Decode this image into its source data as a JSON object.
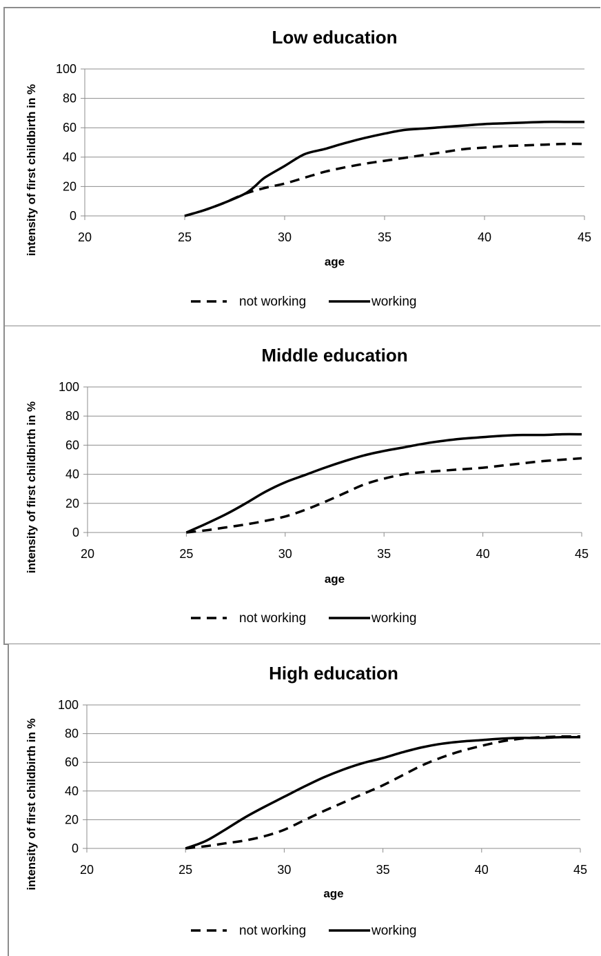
{
  "chart_data": [
    {
      "type": "line",
      "title": "Low education",
      "xlabel": "age",
      "ylabel": "intensity of first childbirth in %",
      "xlim": [
        20,
        45
      ],
      "ylim": [
        0,
        100
      ],
      "x_ticks": [
        "20",
        "25",
        "30",
        "35",
        "40",
        "45"
      ],
      "y_ticks": [
        "0",
        "20",
        "40",
        "60",
        "80",
        "100"
      ],
      "grid": true,
      "legend_position": "bottom",
      "series": [
        {
          "name": "not working",
          "style": "dashed",
          "x": [
            25,
            26,
            27,
            28,
            29,
            30,
            31,
            32,
            33,
            34,
            35,
            36,
            37,
            38,
            39,
            40,
            41,
            42,
            43,
            44,
            45
          ],
          "values": [
            0,
            4,
            9,
            15,
            19,
            22,
            26,
            30,
            33,
            35.5,
            37.5,
            39.5,
            41.5,
            43.5,
            45.5,
            46.5,
            47.5,
            48,
            48.5,
            49,
            49
          ]
        },
        {
          "name": "working",
          "style": "solid",
          "x": [
            25,
            26,
            27,
            28,
            28.5,
            29,
            30,
            31,
            32,
            33,
            34,
            35,
            36,
            37,
            38,
            39,
            40,
            41,
            42,
            43,
            44,
            45
          ],
          "values": [
            0,
            4,
            9,
            15,
            20,
            26,
            34,
            42,
            45.5,
            49.5,
            53,
            56,
            58.5,
            59.5,
            60.5,
            61.5,
            62.5,
            63,
            63.5,
            64,
            64,
            64
          ]
        }
      ]
    },
    {
      "type": "line",
      "title": "Middle education",
      "xlabel": "age",
      "ylabel": "intensity of first childbirth in %",
      "xlim": [
        20,
        45
      ],
      "ylim": [
        0,
        100
      ],
      "x_ticks": [
        "20",
        "25",
        "30",
        "35",
        "40",
        "45"
      ],
      "y_ticks": [
        "0",
        "20",
        "40",
        "60",
        "80",
        "100"
      ],
      "grid": true,
      "legend_position": "bottom",
      "series": [
        {
          "name": "not working",
          "style": "dashed",
          "x": [
            25,
            26,
            27,
            28,
            29,
            30,
            31,
            32,
            33,
            34,
            35,
            36,
            37,
            38,
            39,
            40,
            41,
            42,
            43,
            44,
            45
          ],
          "values": [
            0,
            1.5,
            3.5,
            5.5,
            8,
            11,
            15.5,
            21,
            27,
            33,
            37,
            40,
            41.5,
            42.5,
            43.5,
            44.5,
            46,
            47.5,
            49,
            50,
            51
          ]
        },
        {
          "name": "working",
          "style": "solid",
          "x": [
            25,
            26,
            27,
            28,
            29,
            30,
            31,
            32,
            33,
            34,
            35,
            36,
            37,
            38,
            39,
            40,
            41,
            42,
            43,
            44,
            45
          ],
          "values": [
            0,
            6,
            12.5,
            20,
            28,
            34.5,
            39.5,
            44.5,
            49,
            53,
            56,
            58.5,
            61,
            63,
            64.5,
            65.5,
            66.5,
            67,
            67,
            67.5,
            67.5
          ]
        }
      ]
    },
    {
      "type": "line",
      "title": "High education",
      "xlabel": "age",
      "ylabel": "intensity of first childbirth in %",
      "xlim": [
        20,
        45
      ],
      "ylim": [
        0,
        100
      ],
      "x_ticks": [
        "20",
        "25",
        "30",
        "35",
        "40",
        "45"
      ],
      "y_ticks": [
        "0",
        "20",
        "40",
        "60",
        "80",
        "100"
      ],
      "grid": true,
      "legend_position": "bottom",
      "series": [
        {
          "name": "not working",
          "style": "dashed",
          "x": [
            25,
            26,
            27,
            28,
            29,
            30,
            31,
            32,
            33,
            34,
            35,
            36,
            37,
            38,
            39,
            40,
            41,
            42,
            43,
            44,
            45
          ],
          "values": [
            0,
            1.5,
            3.5,
            5.5,
            8.5,
            13,
            19.5,
            26,
            32,
            38,
            44,
            51,
            58,
            63.5,
            68,
            71.5,
            74.5,
            76.5,
            77.5,
            78,
            78
          ]
        },
        {
          "name": "working",
          "style": "solid",
          "x": [
            25,
            26,
            27,
            28,
            29,
            30,
            31,
            32,
            33,
            34,
            35,
            36,
            37,
            38,
            39,
            40,
            41,
            42,
            43,
            44,
            45
          ],
          "values": [
            0,
            5,
            13,
            21.5,
            29,
            36,
            43,
            49.5,
            55,
            59.5,
            63,
            67,
            70.5,
            73,
            74.5,
            75.5,
            76.5,
            77,
            77,
            77.5,
            77.5
          ]
        }
      ]
    }
  ]
}
